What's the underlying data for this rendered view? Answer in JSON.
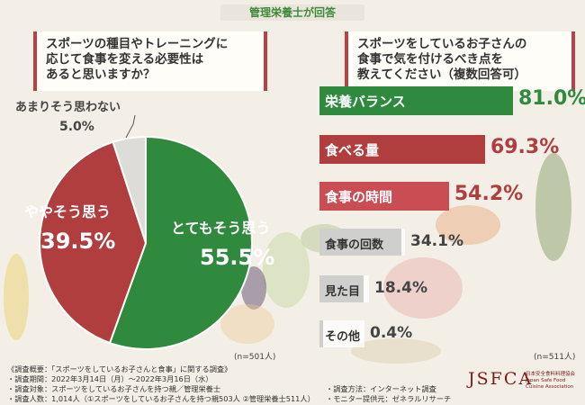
{
  "badge": "管理栄養士が回答",
  "q1": {
    "line1": "スポーツの種目やトレーニングに",
    "line2": "応じて食事を変える必要性は",
    "line3": "あると思いますか？"
  },
  "q2": {
    "line1": "スポーツをしているお子さんの",
    "line2": "食事で気を付けるべき点を",
    "line3": "教えてください（複数回答可）"
  },
  "pie_n": "(n=501人)",
  "bar_n": "(n=511人)",
  "pie_labels": {
    "strong": {
      "name": "とてもそう思う",
      "value": "55.5%"
    },
    "some": {
      "name": "ややそう思う",
      "value": "39.5%"
    },
    "not": {
      "name": "あまりそう思わない",
      "value": "5.0%"
    }
  },
  "bars": [
    {
      "label": "栄養バランス",
      "value": "81.0%"
    },
    {
      "label": "食べる量",
      "value": "69.3%"
    },
    {
      "label": "食事の時間",
      "value": "54.2%"
    },
    {
      "label": "食事の回数",
      "value": "34.1%"
    },
    {
      "label": "見た目",
      "value": "18.4%"
    },
    {
      "label": "その他",
      "value": "0.4%"
    }
  ],
  "footer": {
    "l1": "《調査概要：「スポーツをしているお子さんと食事」に関する調査》",
    "l2": "・調査期間：2022年3月14日（月）～2022年3月16日（水）",
    "l3": "・調査対象：スポーツをしているお子さんを持つ親／管理栄養士",
    "l4": "・調査人数：1,014人（①スポーツをしているお子さんを持つ親503人 ②管理栄養士511人）",
    "r1": "・調査方法：インターネット調査",
    "r2": "・モニター提供元：ゼネラルリサーチ"
  },
  "logo": "JSFCA",
  "logo_sub": "日本安全食料料理協会 Japan Safe Food Cuisine Association",
  "colors": {
    "green": "#2f8a3e",
    "red": "#b13e3e",
    "pink": "#c94d52",
    "gray": "#cfcfcd",
    "lightgray": "#dddcd8"
  },
  "chart_data": [
    {
      "type": "pie",
      "title": "スポーツの種目やトレーニングに応じて食事を変える必要性はあると思いますか？",
      "slices": [
        {
          "label": "とてもそう思う",
          "value": 55.5
        },
        {
          "label": "ややそう思う",
          "value": 39.5
        },
        {
          "label": "あまりそう思わない",
          "value": 5.0
        }
      ],
      "n": "(n=501人)"
    },
    {
      "type": "bar",
      "orientation": "horizontal",
      "title": "スポーツをしているお子さんの食事で気を付けるべき点を教えてください（複数回答可）",
      "categories": [
        "栄養バランス",
        "食べる量",
        "食事の時間",
        "食事の回数",
        "見た目",
        "その他"
      ],
      "values": [
        81.0,
        69.3,
        54.2,
        34.1,
        18.4,
        0.4
      ],
      "n": "(n=511人)"
    }
  ]
}
